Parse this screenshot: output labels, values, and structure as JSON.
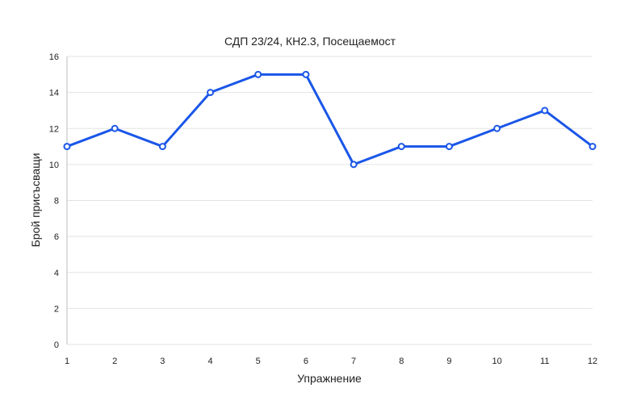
{
  "chart_data": {
    "type": "line",
    "title": "СДП 23/24, КН2.3, Посещаемост",
    "xlabel": "Упражнение",
    "ylabel": "Брой присъсващи",
    "x": [
      1,
      2,
      3,
      4,
      5,
      6,
      7,
      8,
      9,
      10,
      11,
      12
    ],
    "series": [
      {
        "values": [
          11,
          12,
          11,
          14,
          15,
          15,
          10,
          11,
          11,
          12,
          13,
          11
        ],
        "color": "#1a56e8"
      }
    ],
    "ylim": [
      0,
      16
    ],
    "yticks": [
      0,
      2,
      4,
      6,
      8,
      10,
      12,
      14,
      16
    ],
    "grid": true,
    "legend": "none"
  }
}
